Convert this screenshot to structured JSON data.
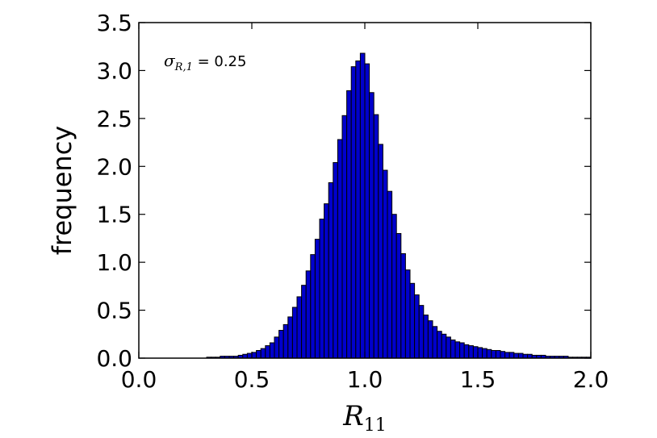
{
  "chart_data": {
    "type": "bar",
    "xlabel": {
      "base": "R",
      "sub": "11"
    },
    "ylabel": "frequency",
    "xlim": [
      0.0,
      2.0
    ],
    "ylim": [
      0.0,
      3.5
    ],
    "xticks": [
      "0.0",
      "0.5",
      "1.0",
      "1.5",
      "2.0"
    ],
    "yticks": [
      "0.0",
      "0.5",
      "1.0",
      "1.5",
      "2.0",
      "2.5",
      "3.0",
      "3.5"
    ],
    "annotation": {
      "symbol": "σ",
      "sub": "R,1",
      "eq": " = 0.25"
    },
    "bar_color": "#0000cc",
    "bin_width": 0.02,
    "bins_start": [
      0.3,
      0.32,
      0.34,
      0.36,
      0.38,
      0.4,
      0.42,
      0.44,
      0.46,
      0.48,
      0.5,
      0.52,
      0.54,
      0.56,
      0.58,
      0.6,
      0.62,
      0.64,
      0.66,
      0.68,
      0.7,
      0.72,
      0.74,
      0.76,
      0.78,
      0.8,
      0.82,
      0.84,
      0.86,
      0.88,
      0.9,
      0.92,
      0.94,
      0.96,
      0.98,
      1.0,
      1.02,
      1.04,
      1.06,
      1.08,
      1.1,
      1.12,
      1.14,
      1.16,
      1.18,
      1.2,
      1.22,
      1.24,
      1.26,
      1.28,
      1.3,
      1.32,
      1.34,
      1.36,
      1.38,
      1.4,
      1.42,
      1.44,
      1.46,
      1.48,
      1.5,
      1.52,
      1.54,
      1.56,
      1.58,
      1.6,
      1.62,
      1.64,
      1.66,
      1.68,
      1.7,
      1.72,
      1.74,
      1.76,
      1.78,
      1.8,
      1.82,
      1.84,
      1.86,
      1.88,
      1.9,
      1.92,
      1.94,
      1.96,
      1.98
    ],
    "values": [
      0.01,
      0.01,
      0.01,
      0.02,
      0.02,
      0.02,
      0.02,
      0.03,
      0.04,
      0.05,
      0.06,
      0.08,
      0.1,
      0.13,
      0.16,
      0.22,
      0.29,
      0.35,
      0.43,
      0.53,
      0.64,
      0.76,
      0.91,
      1.08,
      1.24,
      1.45,
      1.61,
      1.83,
      2.04,
      2.28,
      2.53,
      2.79,
      3.04,
      3.1,
      3.18,
      3.07,
      2.77,
      2.54,
      2.23,
      1.96,
      1.74,
      1.5,
      1.3,
      1.09,
      0.92,
      0.78,
      0.66,
      0.55,
      0.45,
      0.39,
      0.33,
      0.28,
      0.25,
      0.22,
      0.19,
      0.17,
      0.16,
      0.14,
      0.13,
      0.12,
      0.11,
      0.1,
      0.09,
      0.08,
      0.08,
      0.07,
      0.06,
      0.06,
      0.05,
      0.05,
      0.04,
      0.04,
      0.03,
      0.03,
      0.03,
      0.02,
      0.02,
      0.02,
      0.02,
      0.02,
      0.01,
      0.01,
      0.01,
      0.01,
      0.01
    ]
  }
}
